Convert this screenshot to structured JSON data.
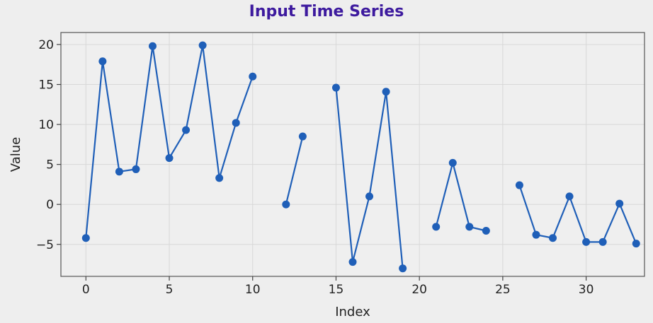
{
  "chart_data": {
    "type": "line",
    "title": "Input Time Series",
    "xlabel": "Index",
    "ylabel": "Value",
    "xlim": [
      -1.5,
      33.5
    ],
    "ylim": [
      -9,
      21.5
    ],
    "xticks": [
      0,
      5,
      10,
      15,
      20,
      25,
      30
    ],
    "yticks": [
      -5,
      0,
      5,
      10,
      15,
      20
    ],
    "grid": true,
    "legend": "none",
    "colors": {
      "line": "#1f5fb8",
      "title": "#3d1a9e",
      "background": "#eeeeee",
      "axes_face": "#efefef",
      "grid": "#d8d8d8"
    },
    "series": [
      {
        "x": [
          0,
          1,
          2,
          3,
          4,
          5,
          6,
          7,
          8,
          9,
          10,
          11,
          12,
          13,
          14,
          15,
          16,
          17,
          18,
          19,
          20,
          21,
          22,
          23,
          24,
          25,
          26,
          27,
          28,
          29,
          30,
          31,
          32,
          33
        ],
        "values": [
          -4.2,
          17.9,
          4.1,
          4.4,
          19.8,
          5.8,
          9.3,
          19.9,
          3.3,
          10.2,
          16.0,
          null,
          0.0,
          8.5,
          null,
          14.6,
          -7.2,
          1.0,
          14.1,
          -8.0,
          null,
          -2.8,
          5.2,
          -2.8,
          -3.3,
          null,
          2.4,
          -3.8,
          -4.2,
          1.0,
          -4.7,
          -4.7,
          0.1,
          -4.9
        ]
      }
    ]
  }
}
